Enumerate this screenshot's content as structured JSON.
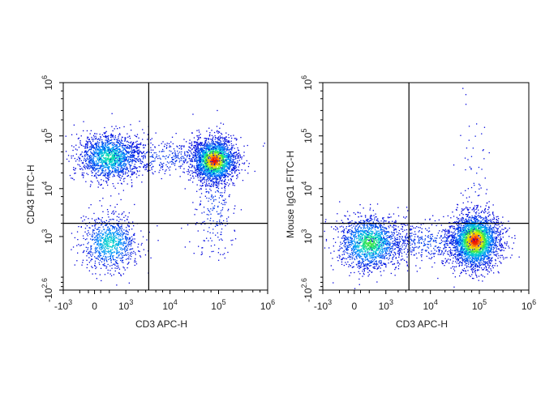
{
  "chart_data": [
    {
      "type": "scatter",
      "subtype": "flow-cytometry-density-dot-plot",
      "xlabel": "CD3 APC-H",
      "ylabel": "CD43 FITC-H",
      "x_scale": "biexponential",
      "y_scale": "biexponential",
      "x_ticks": [
        {
          "base": "-10",
          "exp": "3",
          "value": -1000
        },
        {
          "base": "0",
          "exp": "",
          "value": 0
        },
        {
          "base": "10",
          "exp": "3",
          "value": 1000
        },
        {
          "base": "10",
          "exp": "4",
          "value": 10000
        },
        {
          "base": "10",
          "exp": "5",
          "value": 100000
        },
        {
          "base": "10",
          "exp": "6",
          "value": 1000000
        }
      ],
      "y_ticks": [
        {
          "base": "-10",
          "exp": "2.6",
          "value": -398
        },
        {
          "base": "10",
          "exp": "3",
          "value": 1000
        },
        {
          "base": "10",
          "exp": "4",
          "value": 10000
        },
        {
          "base": "10",
          "exp": "5",
          "value": 100000
        },
        {
          "base": "10",
          "exp": "6",
          "value": 1000000
        }
      ],
      "gates": {
        "x": 3500,
        "y": 2000
      },
      "populations": [
        {
          "x": 300,
          "y": 40000,
          "sx": 0.32,
          "sy": 0.22,
          "n": 1500,
          "peak": 0.5
        },
        {
          "x": 80000,
          "y": 35000,
          "sx": 0.22,
          "sy": 0.2,
          "n": 2200,
          "peak": 1.0
        },
        {
          "x": 300,
          "y": 700,
          "sx": 0.28,
          "sy": 0.25,
          "n": 900,
          "peak": 0.45
        },
        {
          "x": 8000,
          "y": 40000,
          "sx": 0.8,
          "sy": 0.18,
          "n": 500,
          "peak": 0.1
        },
        {
          "x": 80000,
          "y": 5000,
          "sx": 0.2,
          "sy": 0.6,
          "n": 250,
          "peak": 0.1
        }
      ]
    },
    {
      "type": "scatter",
      "subtype": "flow-cytometry-density-dot-plot",
      "xlabel": "CD3 APC-H",
      "ylabel": "Mouse IgG1 FITC-H",
      "x_scale": "biexponential",
      "y_scale": "biexponential",
      "x_ticks": [
        {
          "base": "-10",
          "exp": "3",
          "value": -1000
        },
        {
          "base": "0",
          "exp": "",
          "value": 0
        },
        {
          "base": "10",
          "exp": "3",
          "value": 1000
        },
        {
          "base": "10",
          "exp": "4",
          "value": 10000
        },
        {
          "base": "10",
          "exp": "5",
          "value": 100000
        },
        {
          "base": "10",
          "exp": "6",
          "value": 1000000
        }
      ],
      "y_ticks": [
        {
          "base": "-10",
          "exp": "2.6",
          "value": -398
        },
        {
          "base": "10",
          "exp": "3",
          "value": 1000
        },
        {
          "base": "10",
          "exp": "4",
          "value": 10000
        },
        {
          "base": "10",
          "exp": "5",
          "value": 100000
        },
        {
          "base": "10",
          "exp": "6",
          "value": 1000000
        }
      ],
      "gates": {
        "x": 3500,
        "y": 2000
      },
      "populations": [
        {
          "x": 300,
          "y": 700,
          "sx": 0.32,
          "sy": 0.25,
          "n": 1600,
          "peak": 0.6
        },
        {
          "x": 80000,
          "y": 800,
          "sx": 0.24,
          "sy": 0.25,
          "n": 2800,
          "peak": 1.0
        },
        {
          "x": 8000,
          "y": 750,
          "sx": 0.7,
          "sy": 0.2,
          "n": 500,
          "peak": 0.12
        },
        {
          "x": 80000,
          "y": 20000,
          "sx": 0.15,
          "sy": 0.9,
          "n": 60,
          "peak": 0.05
        }
      ]
    }
  ]
}
